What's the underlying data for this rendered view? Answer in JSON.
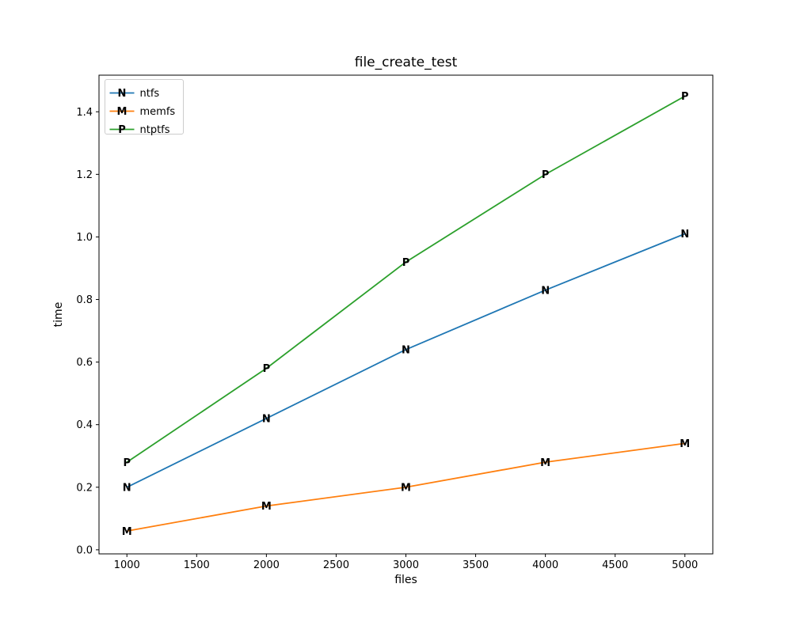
{
  "title": "file_create_test",
  "chart_data": {
    "type": "line",
    "title": "file_create_test",
    "xlabel": "files",
    "ylabel": "time",
    "x": [
      1000,
      2000,
      3000,
      4000,
      5000
    ],
    "series": [
      {
        "name": "ntfs",
        "marker": "N",
        "color": "#1f77b4",
        "values": [
          0.2,
          0.42,
          0.64,
          0.83,
          1.01
        ]
      },
      {
        "name": "memfs",
        "marker": "M",
        "color": "#ff7f0e",
        "values": [
          0.06,
          0.14,
          0.2,
          0.28,
          0.34
        ]
      },
      {
        "name": "ntptfs",
        "marker": "P",
        "color": "#2ca02c",
        "values": [
          0.28,
          0.58,
          0.92,
          1.2,
          1.45
        ]
      }
    ],
    "xticks": [
      "1000",
      "1500",
      "2000",
      "2500",
      "3000",
      "3500",
      "4000",
      "4500",
      "5000"
    ],
    "xtick_values": [
      1000,
      1500,
      2000,
      2500,
      3000,
      3500,
      4000,
      4500,
      5000
    ],
    "yticks": [
      "0.0",
      "0.2",
      "0.4",
      "0.6",
      "0.8",
      "1.0",
      "1.2",
      "1.4"
    ],
    "ytick_values": [
      0.0,
      0.2,
      0.4,
      0.6,
      0.8,
      1.0,
      1.2,
      1.4
    ],
    "xlim": [
      800,
      5200
    ],
    "ylim": [
      -0.013,
      1.517
    ],
    "grid": false,
    "legend": {
      "position": "upper left",
      "entries": [
        "ntfs",
        "memfs",
        "ntptfs"
      ]
    }
  },
  "colors": {
    "background": "#ffffff",
    "spine": "#000000",
    "tick": "#000000",
    "legend_border": "#cccccc",
    "legend_background": "#ffffff"
  }
}
